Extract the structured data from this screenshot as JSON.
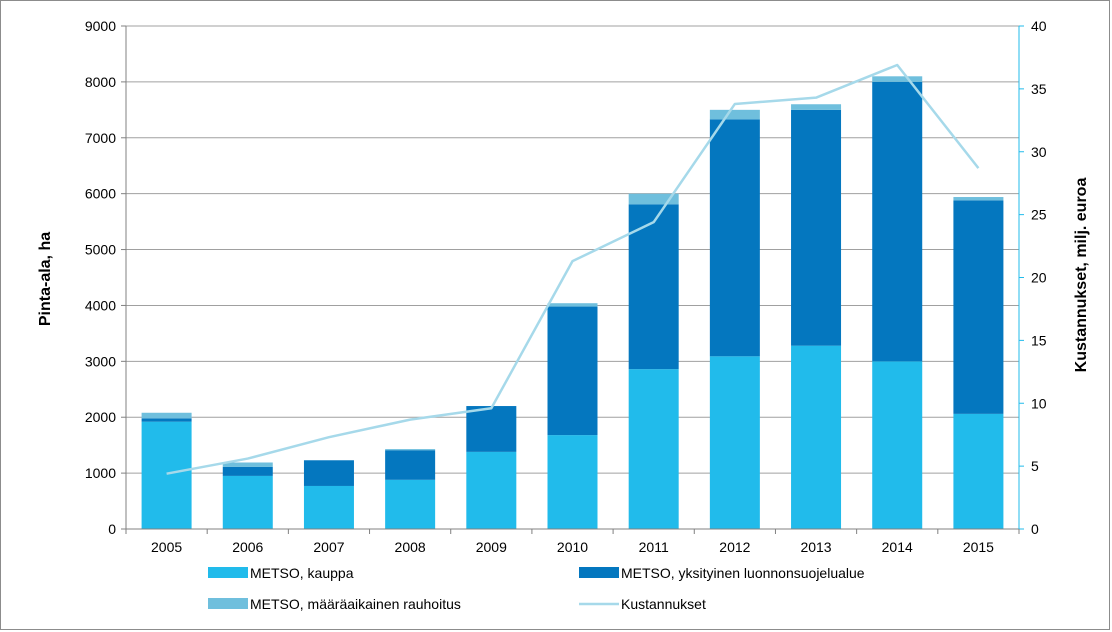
{
  "chart_data": {
    "type": "bar",
    "stacked": true,
    "categories": [
      "2005",
      "2006",
      "2007",
      "2008",
      "2009",
      "2010",
      "2011",
      "2012",
      "2013",
      "2014",
      "2015"
    ],
    "series": [
      {
        "name": "METSO, kauppa",
        "color": "#21bbeb",
        "values": [
          1920,
          950,
          770,
          880,
          1380,
          1680,
          2860,
          3090,
          3280,
          3000,
          2060
        ]
      },
      {
        "name": "METSO, yksityinen luonnonsuojelualue",
        "color": "#0477bf",
        "values": [
          60,
          160,
          460,
          530,
          820,
          2300,
          2950,
          4240,
          4220,
          5000,
          3820
        ]
      },
      {
        "name": "METSO, määräaikainen rauhoitus",
        "color": "#6fbfdd",
        "values": [
          100,
          80,
          0,
          20,
          0,
          60,
          190,
          170,
          100,
          100,
          60
        ]
      }
    ],
    "line_series": {
      "name": "Kustannukset",
      "color": "#a6d9ea",
      "axis": "right",
      "values": [
        4.4,
        5.6,
        7.3,
        8.7,
        9.6,
        21.3,
        24.4,
        33.8,
        34.3,
        36.9,
        28.7
      ]
    },
    "ylabel": "Pinta-ala, ha",
    "ylabel_right": "Kustannukset, milj. euroa",
    "ylim": [
      0,
      9000
    ],
    "yticks": [
      0,
      1000,
      2000,
      3000,
      4000,
      5000,
      6000,
      7000,
      8000,
      9000
    ],
    "ylim_right": [
      0,
      40
    ],
    "yticks_right": [
      0,
      5,
      10,
      15,
      20,
      25,
      30,
      35,
      40
    ],
    "grid": true,
    "legend_position": "bottom",
    "legend": [
      {
        "label": "METSO, kauppa",
        "kind": "bar",
        "color": "#21bbeb"
      },
      {
        "label": "METSO, yksityinen luonnonsuojelualue",
        "kind": "bar",
        "color": "#0477bf"
      },
      {
        "label": "METSO, määräaikainen rauhoitus",
        "kind": "bar",
        "color": "#6fbfdd"
      },
      {
        "label": "Kustannukset",
        "kind": "line",
        "color": "#a6d9ea"
      }
    ]
  }
}
